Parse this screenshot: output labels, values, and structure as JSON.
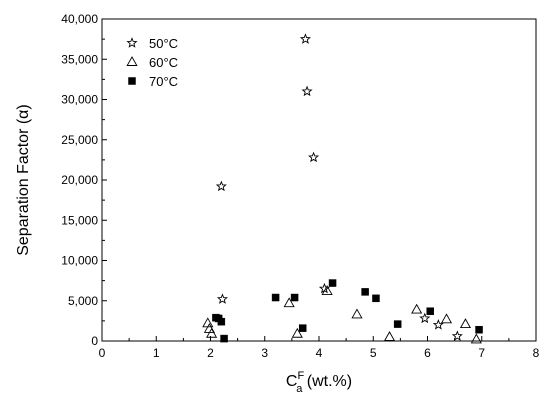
{
  "chart_data": {
    "type": "scatter",
    "xlabel": "C",
    "xlabel_sub": "a",
    "xlabel_sup": "F",
    "xlabel_units": " (wt.%)",
    "ylabel": "Separation Factor (α)",
    "xlim": [
      0,
      8
    ],
    "ylim": [
      0,
      40000
    ],
    "xticks": [
      0,
      1,
      2,
      3,
      4,
      5,
      6,
      7,
      8
    ],
    "yticks": [
      0,
      5000,
      10000,
      15000,
      20000,
      25000,
      30000,
      35000,
      40000
    ],
    "xtick_labels": [
      "0",
      "1",
      "2",
      "3",
      "4",
      "5",
      "6",
      "7",
      "8"
    ],
    "ytick_labels": [
      "0",
      "5,000",
      "10,000",
      "15,000",
      "20,000",
      "25,000",
      "30,000",
      "35,000",
      "40,000"
    ],
    "legend_position": "top-left",
    "grid": false,
    "series": [
      {
        "name": "50°C",
        "marker": "star",
        "color": "#000000",
        "points": [
          [
            2.2,
            19200
          ],
          [
            2.22,
            5200
          ],
          [
            3.75,
            37500
          ],
          [
            3.78,
            31000
          ],
          [
            3.9,
            22800
          ],
          [
            4.1,
            6500
          ],
          [
            5.95,
            2800
          ],
          [
            6.2,
            2000
          ],
          [
            6.55,
            600
          ]
        ]
      },
      {
        "name": "60°C",
        "marker": "open-triangle",
        "color": "#000000",
        "points": [
          [
            1.95,
            2200
          ],
          [
            1.98,
            1500
          ],
          [
            2.02,
            900
          ],
          [
            3.45,
            4700
          ],
          [
            3.6,
            900
          ],
          [
            4.15,
            6200
          ],
          [
            4.7,
            3300
          ],
          [
            5.3,
            500
          ],
          [
            5.8,
            3900
          ],
          [
            6.35,
            2700
          ],
          [
            6.7,
            2100
          ],
          [
            6.9,
            200
          ]
        ]
      },
      {
        "name": "70°C",
        "marker": "filled-square",
        "color": "#000000",
        "points": [
          [
            2.1,
            2900
          ],
          [
            2.15,
            2800
          ],
          [
            2.2,
            2400
          ],
          [
            2.25,
            300
          ],
          [
            3.2,
            5400
          ],
          [
            3.55,
            5400
          ],
          [
            3.7,
            1600
          ],
          [
            4.25,
            7200
          ],
          [
            4.85,
            6100
          ],
          [
            5.05,
            5300
          ],
          [
            5.45,
            2100
          ],
          [
            6.05,
            3700
          ],
          [
            6.95,
            1400
          ]
        ]
      }
    ]
  }
}
